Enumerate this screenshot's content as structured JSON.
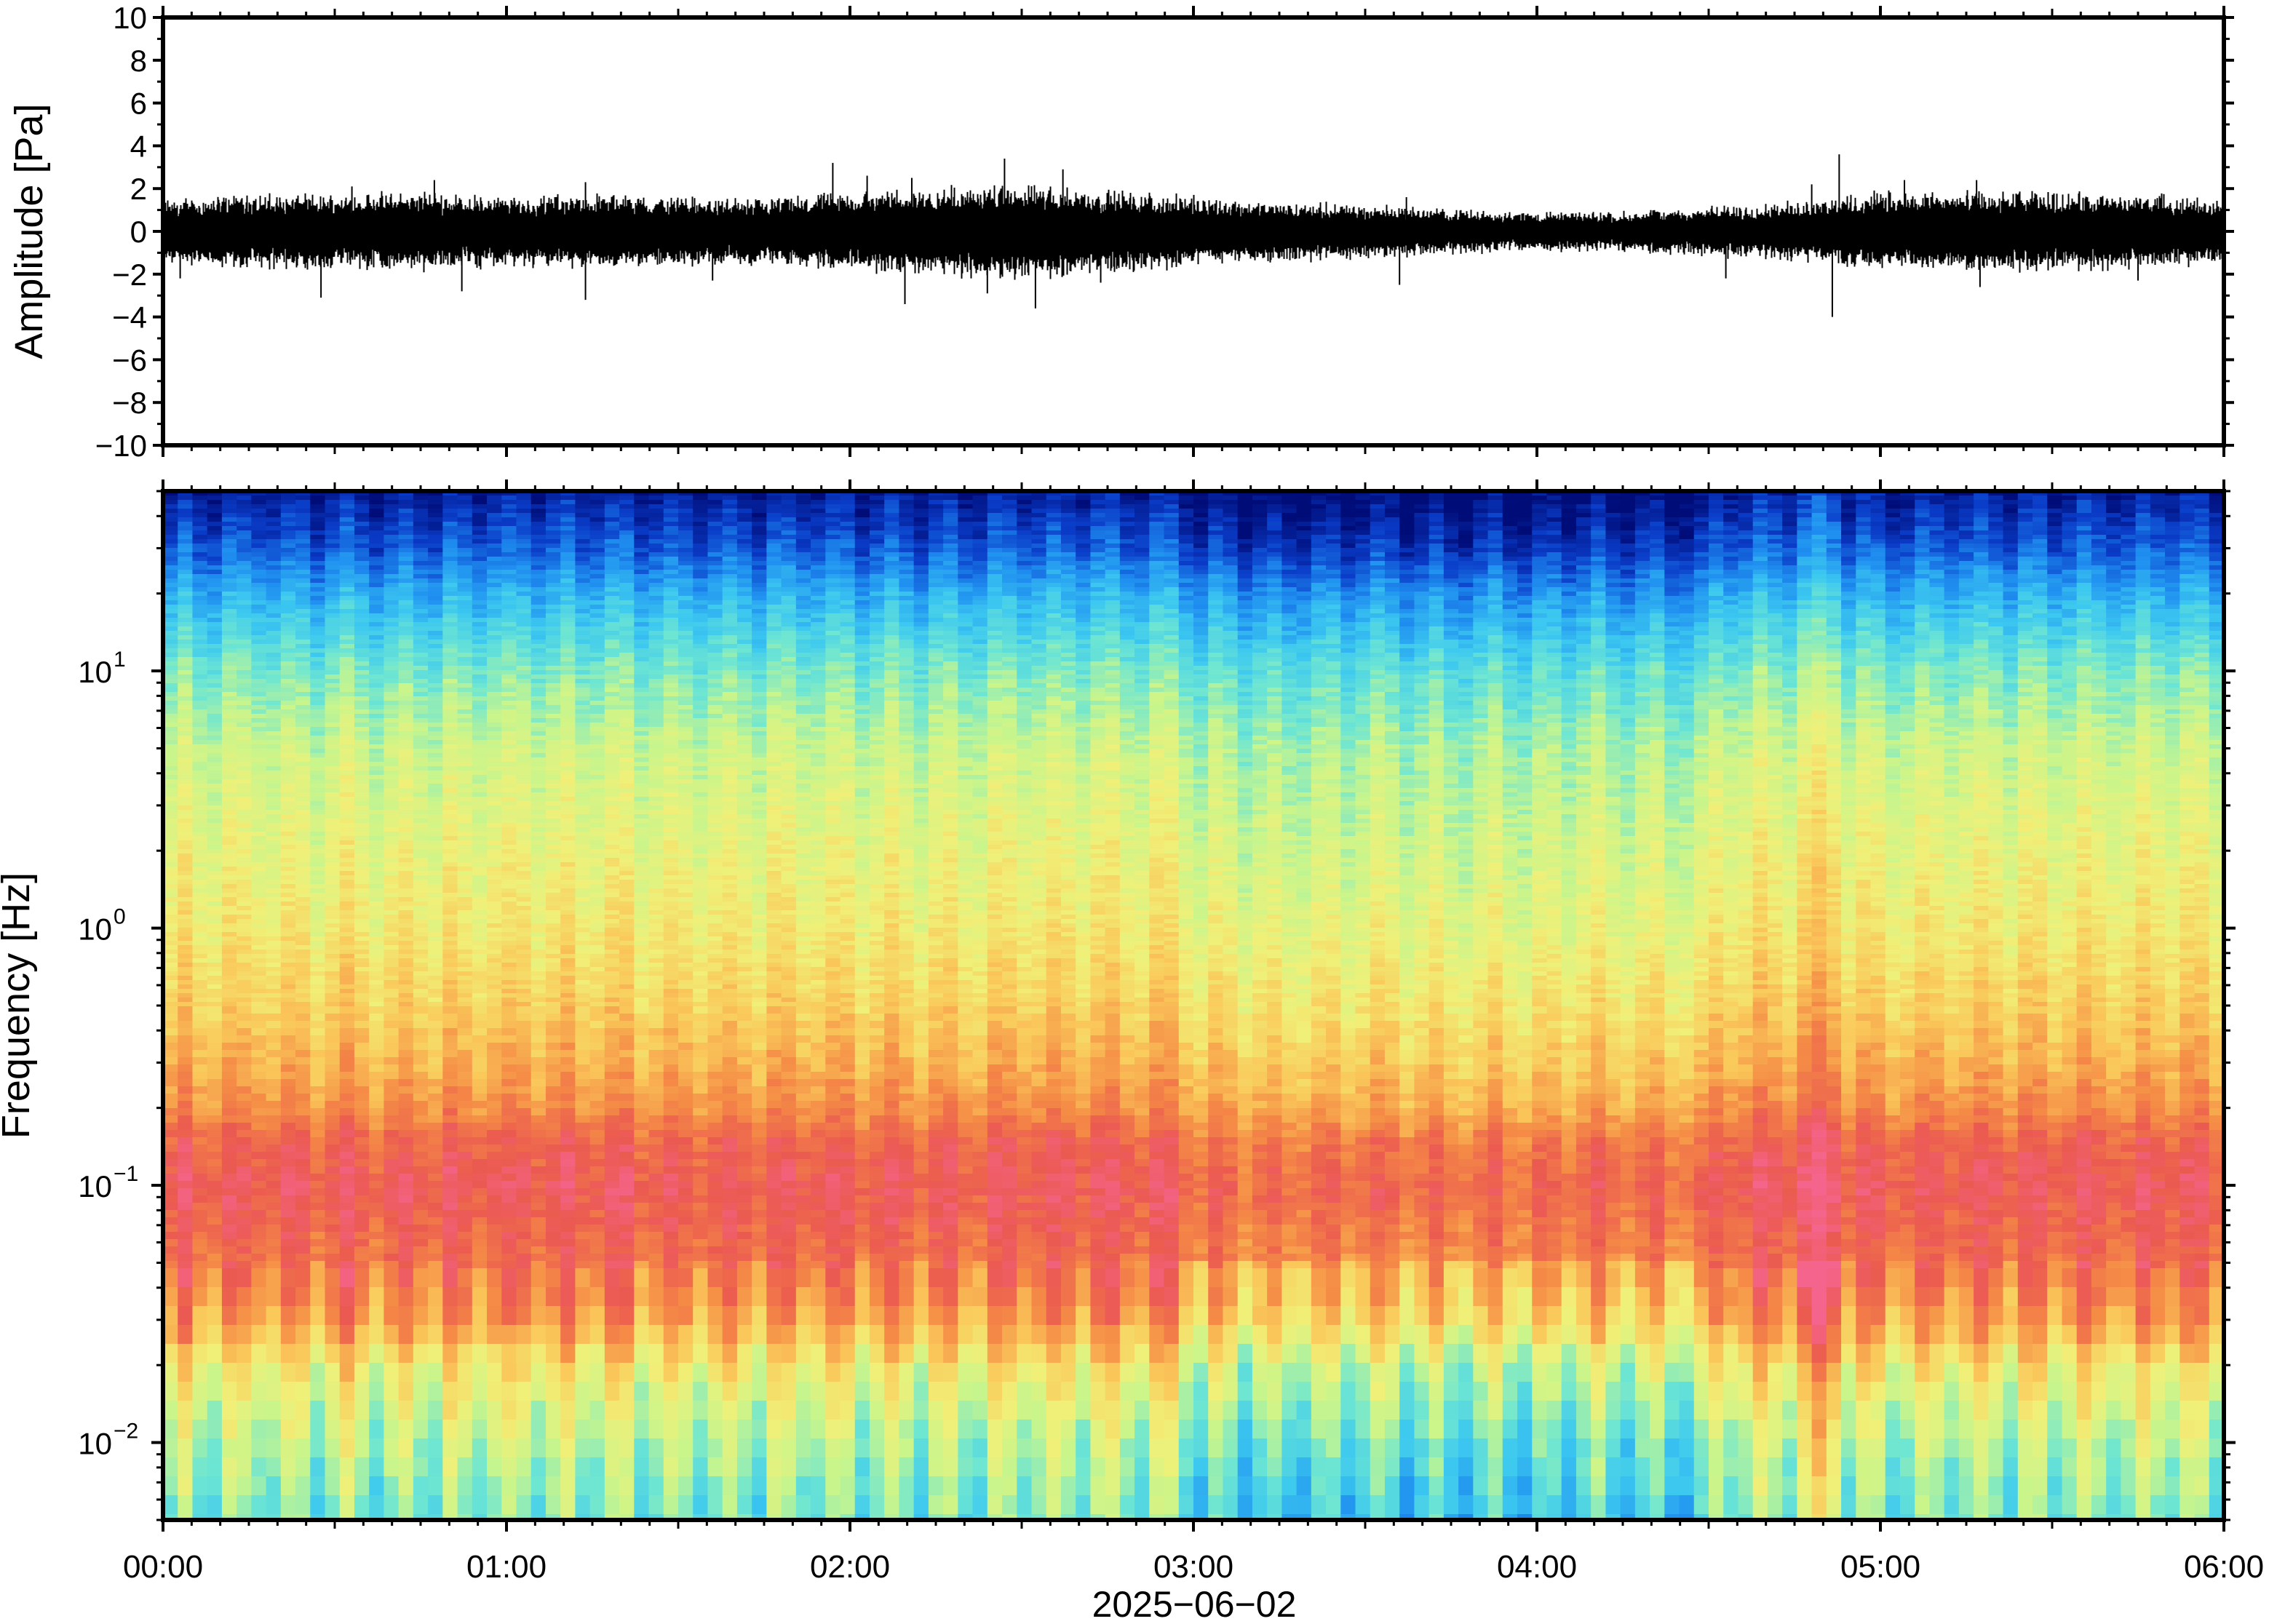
{
  "chart_data": [
    {
      "type": "line",
      "panel": "waveform",
      "ylabel": "Amplitude [Pa]",
      "ylim": [
        -10,
        10
      ],
      "yticks": [
        -10,
        -8,
        -6,
        -4,
        -2,
        0,
        2,
        4,
        6,
        8,
        10
      ],
      "ytick_labels": [
        "−10",
        "−8",
        "−6",
        "−4",
        "−2",
        "0",
        "2",
        "4",
        "6",
        "8",
        "10"
      ],
      "xlim": [
        "00:00",
        "06:00"
      ],
      "grid": false,
      "series": [
        {
          "x_hours": [
            0.0,
            0.25,
            0.5,
            0.75,
            1.0,
            1.25,
            1.5,
            1.75,
            2.0,
            2.25,
            2.5,
            2.75,
            3.0,
            3.25,
            3.5,
            3.75,
            4.0,
            4.25,
            4.5,
            4.75,
            5.0,
            5.25,
            5.5,
            5.75,
            6.0
          ],
          "envelope": [
            1.3,
            1.5,
            1.5,
            1.6,
            1.4,
            1.5,
            1.4,
            1.3,
            1.6,
            1.8,
            1.9,
            1.7,
            1.4,
            1.2,
            1.1,
            0.9,
            0.8,
            0.8,
            1.0,
            1.2,
            1.6,
            1.6,
            1.6,
            1.5,
            1.3
          ],
          "spikes": [
            {
              "t": 0.05,
              "v": -2.2
            },
            {
              "t": 0.46,
              "v": -3.1
            },
            {
              "t": 0.55,
              "v": 2.1
            },
            {
              "t": 0.79,
              "v": 2.4
            },
            {
              "t": 0.87,
              "v": -2.8
            },
            {
              "t": 1.23,
              "v": -3.2
            },
            {
              "t": 1.23,
              "v": 2.3
            },
            {
              "t": 1.6,
              "v": -2.3
            },
            {
              "t": 1.95,
              "v": 3.2
            },
            {
              "t": 2.05,
              "v": 2.6
            },
            {
              "t": 2.16,
              "v": -3.4
            },
            {
              "t": 2.18,
              "v": 2.5
            },
            {
              "t": 2.4,
              "v": -2.9
            },
            {
              "t": 2.45,
              "v": 3.4
            },
            {
              "t": 2.54,
              "v": -3.6
            },
            {
              "t": 2.62,
              "v": 2.9
            },
            {
              "t": 2.73,
              "v": -2.4
            },
            {
              "t": 3.6,
              "v": -2.5
            },
            {
              "t": 3.62,
              "v": 1.6
            },
            {
              "t": 4.55,
              "v": -2.2
            },
            {
              "t": 4.8,
              "v": 2.2
            },
            {
              "t": 4.86,
              "v": -4.0
            },
            {
              "t": 4.88,
              "v": 3.6
            },
            {
              "t": 5.07,
              "v": 2.4
            },
            {
              "t": 5.28,
              "v": 2.4
            },
            {
              "t": 5.29,
              "v": -2.6
            },
            {
              "t": 5.75,
              "v": -2.3
            }
          ]
        }
      ]
    },
    {
      "type": "heatmap",
      "panel": "spectrogram",
      "ylabel": "Frequency [Hz]",
      "yscale": "log",
      "ylim": [
        0.005,
        50
      ],
      "yticks": [
        0.01,
        0.1,
        1,
        10
      ],
      "ytick_labels": [
        {
          "base": "10",
          "exp": "−2"
        },
        {
          "base": "10",
          "exp": "−1"
        },
        {
          "base": "10",
          "exp": "0"
        },
        {
          "base": "10",
          "exp": "1"
        }
      ],
      "xlabel": "2025−06−02",
      "xlim": [
        "00:00",
        "06:00"
      ],
      "xticks": [
        "00:00",
        "01:00",
        "02:00",
        "03:00",
        "04:00",
        "05:00",
        "06:00"
      ],
      "colormap": "rainbow",
      "colormap_stops": [
        "#000c78",
        "#0a3cc8",
        "#1f8ff0",
        "#3cc8f0",
        "#6ee6d2",
        "#c8f58c",
        "#f0f078",
        "#fac85a",
        "#f58c46",
        "#eb5a50",
        "#f5648c"
      ],
      "relative_power_profile": {
        "frequency_hz": [
          0.005,
          0.01,
          0.02,
          0.03,
          0.05,
          0.1,
          0.15,
          0.2,
          0.3,
          0.5,
          1,
          2,
          5,
          10,
          20,
          30,
          50
        ],
        "level": [
          0.42,
          0.5,
          0.62,
          0.78,
          0.86,
          0.92,
          0.88,
          0.8,
          0.74,
          0.68,
          0.62,
          0.58,
          0.52,
          0.42,
          0.26,
          0.14,
          0.04
        ]
      }
    }
  ]
}
